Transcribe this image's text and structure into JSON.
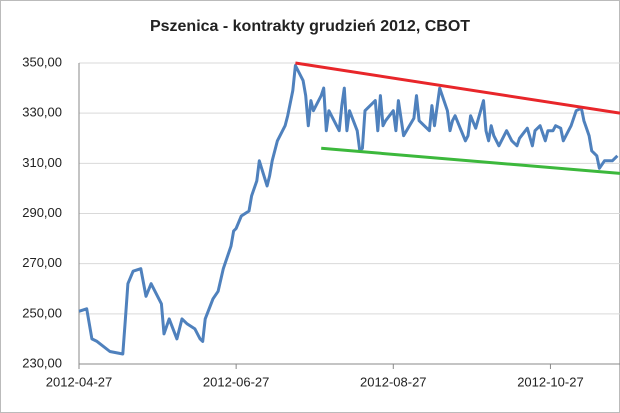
{
  "chart_data": {
    "type": "line",
    "title": "Pszenica - kontrakty grudzień 2012, CBOT",
    "x": [
      "2012-04-27",
      "2012-04-30",
      "2012-05-02",
      "2012-05-04",
      "2012-05-09",
      "2012-05-14",
      "2012-05-15",
      "2012-05-16",
      "2012-05-18",
      "2012-05-21",
      "2012-05-23",
      "2012-05-25",
      "2012-05-29",
      "2012-05-30",
      "2012-06-01",
      "2012-06-04",
      "2012-06-06",
      "2012-06-08",
      "2012-06-11",
      "2012-06-13",
      "2012-06-14",
      "2012-06-15",
      "2012-06-18",
      "2012-06-20",
      "2012-06-22",
      "2012-06-25",
      "2012-06-26",
      "2012-06-27",
      "2012-06-29",
      "2012-07-02",
      "2012-07-03",
      "2012-07-05",
      "2012-07-06",
      "2012-07-09",
      "2012-07-10",
      "2012-07-11",
      "2012-07-12",
      "2012-07-13",
      "2012-07-16",
      "2012-07-17",
      "2012-07-19",
      "2012-07-20",
      "2012-07-23",
      "2012-07-24",
      "2012-07-25",
      "2012-07-26",
      "2012-07-27",
      "2012-07-30",
      "2012-07-31",
      "2012-08-01",
      "2012-08-02",
      "2012-08-06",
      "2012-08-07",
      "2012-08-08",
      "2012-08-09",
      "2012-08-10",
      "2012-08-13",
      "2012-08-14",
      "2012-08-15",
      "2012-08-16",
      "2012-08-20",
      "2012-08-21",
      "2012-08-22",
      "2012-08-23",
      "2012-08-24",
      "2012-08-27",
      "2012-08-28",
      "2012-08-29",
      "2012-08-31",
      "2012-09-04",
      "2012-09-05",
      "2012-09-06",
      "2012-09-10",
      "2012-09-11",
      "2012-09-12",
      "2012-09-14",
      "2012-09-17",
      "2012-09-18",
      "2012-09-19",
      "2012-09-20",
      "2012-09-24",
      "2012-09-25",
      "2012-09-26",
      "2012-09-28",
      "2012-10-01",
      "2012-10-02",
      "2012-10-03",
      "2012-10-04",
      "2012-10-05",
      "2012-10-07",
      "2012-10-10",
      "2012-10-12",
      "2012-10-14",
      "2012-10-15",
      "2012-10-18",
      "2012-10-20",
      "2012-10-21",
      "2012-10-23",
      "2012-10-25",
      "2012-10-26",
      "2012-10-28",
      "2012-10-29",
      "2012-10-31",
      "2012-11-01",
      "2012-11-03",
      "2012-11-04",
      "2012-11-06",
      "2012-11-08",
      "2012-11-09",
      "2012-11-11",
      "2012-11-12",
      "2012-11-14",
      "2012-11-15",
      "2012-11-17",
      "2012-11-18",
      "2012-11-20",
      "2012-11-22"
    ],
    "series": [
      {
        "color": "#4f81bd",
        "values": [
          251,
          252,
          240,
          239,
          235,
          234,
          248,
          262,
          267,
          268,
          257,
          262,
          254,
          242,
          248,
          240,
          248,
          246,
          244,
          240,
          239,
          248,
          256,
          259,
          268,
          277,
          283,
          284,
          289,
          291,
          297,
          303,
          311,
          301,
          305,
          311,
          315,
          319,
          325,
          329,
          339,
          349,
          343,
          337,
          325,
          335,
          331,
          337,
          340,
          323,
          331,
          323,
          333,
          340,
          323,
          331,
          323,
          315,
          316,
          331,
          335,
          323,
          337,
          325,
          327,
          331,
          323,
          335,
          321,
          328,
          337,
          327,
          323,
          333,
          325,
          340,
          331,
          323,
          327,
          329,
          319,
          321,
          329,
          324,
          335,
          323,
          319,
          325,
          321,
          317,
          323,
          319,
          317,
          320,
          324,
          317,
          323,
          325,
          319,
          323,
          323,
          325,
          324,
          319,
          323,
          325,
          331,
          332,
          327,
          321,
          315,
          313,
          308,
          311,
          311,
          311,
          313
        ]
      }
    ],
    "trendlines": [
      {
        "color": "#e8262a",
        "x": [
          "2012-07-20",
          "2012-11-23"
        ],
        "values": [
          350,
          330
        ]
      },
      {
        "color": "#3cb83c",
        "x": [
          "2012-07-30",
          "2012-11-23"
        ],
        "values": [
          316,
          306
        ]
      }
    ],
    "xlim": [
      "2012-04-27",
      "2012-11-23"
    ],
    "xticks": [
      "2012-04-27",
      "2012-06-27",
      "2012-08-27",
      "2012-10-27"
    ],
    "ylim": [
      230,
      350
    ],
    "yticks": [
      {
        "value": 230,
        "label": "230,00"
      },
      {
        "value": 250,
        "label": "250,00"
      },
      {
        "value": 270,
        "label": "270,00"
      },
      {
        "value": 290,
        "label": "290,00"
      },
      {
        "value": 310,
        "label": "310,00"
      },
      {
        "value": 330,
        "label": "330,00"
      },
      {
        "value": 350,
        "label": "350,00"
      }
    ],
    "grid": true
  }
}
